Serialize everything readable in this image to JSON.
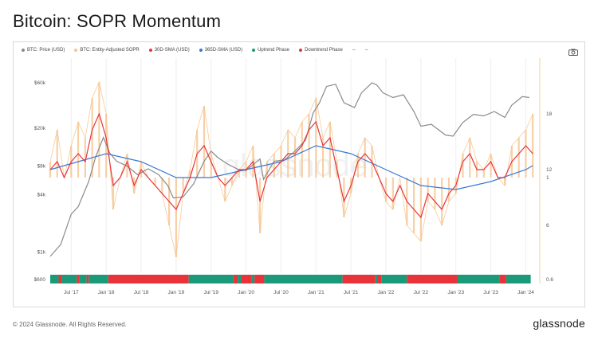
{
  "page": {
    "title": "Bitcoin: SOPR Momentum",
    "footer": "© 2024 Glassnode. All Rights Reserved.",
    "brand": "glassnode",
    "watermark": "glassnode"
  },
  "legend": [
    {
      "label": "BTC: Price (USD)",
      "color": "#8a8a8a"
    },
    {
      "label": "BTC: Entity-Adjusted SOPR",
      "color": "#f6c48f"
    },
    {
      "label": "30D-SMA (USD)",
      "color": "#e8333a"
    },
    {
      "label": "365D-SMA (USD)",
      "color": "#3a78d6"
    },
    {
      "label": "Uptrend Phase",
      "color": "#1a9a78"
    },
    {
      "label": "Downtrend Phase",
      "color": "#e8333a"
    },
    {
      "label": "--",
      "color": "#444444"
    },
    {
      "label": "--",
      "color": "#444444"
    }
  ],
  "toolbar": {
    "screenshot_icon": "camera-icon"
  },
  "chart_data": {
    "type": "line",
    "title": "Bitcoin: SOPR Momentum",
    "x_ticks": [
      "Jul '17",
      "Jan '18",
      "Jul '18",
      "Jan '19",
      "Jul '19",
      "Jan '20",
      "Jul '20",
      "Jan '21",
      "Jul '21",
      "Jan '22",
      "Jul '22",
      "Jan '23",
      "Jul '23",
      "Jan '24"
    ],
    "x_tick_dates": [
      2017.5,
      2018.0,
      2018.5,
      2019.0,
      2019.5,
      2020.0,
      2020.5,
      2021.0,
      2021.5,
      2022.0,
      2022.5,
      2023.0,
      2023.5,
      2024.0
    ],
    "xlim": [
      2017.2,
      2024.2
    ],
    "y_left": {
      "label": "",
      "scale": "log",
      "ticks": [
        "$600",
        "$1k",
        "$4k",
        "$8k",
        "$20k",
        "$60k"
      ],
      "tick_values": [
        600,
        1000,
        4000,
        8000,
        20000,
        60000
      ],
      "range": [
        600,
        90000
      ]
    },
    "y_right": {
      "label": "",
      "ticks": [
        "0.6",
        "1",
        "6",
        "12",
        "18"
      ],
      "tick_values": [
        0.6,
        1,
        6,
        12,
        18
      ]
    },
    "series": [
      {
        "name": "BTC: Price (USD)",
        "color": "#8a8a8a",
        "x": [
          2017.2,
          2017.35,
          2017.5,
          2017.6,
          2017.75,
          2017.85,
          2017.96,
          2018.05,
          2018.15,
          2018.3,
          2018.45,
          2018.6,
          2018.75,
          2018.88,
          2018.96,
          2019.1,
          2019.25,
          2019.4,
          2019.5,
          2019.6,
          2019.75,
          2019.9,
          2020.0,
          2020.2,
          2020.25,
          2020.4,
          2020.55,
          2020.7,
          2020.85,
          2020.96,
          2021.05,
          2021.15,
          2021.28,
          2021.4,
          2021.55,
          2021.65,
          2021.8,
          2021.87,
          2021.96,
          2022.1,
          2022.25,
          2022.4,
          2022.5,
          2022.65,
          2022.85,
          2022.96,
          2023.1,
          2023.25,
          2023.4,
          2023.55,
          2023.7,
          2023.8,
          2023.95,
          2024.05
        ],
        "y": [
          900,
          1200,
          2500,
          3000,
          5500,
          10000,
          16000,
          11000,
          9000,
          8000,
          6500,
          7500,
          6500,
          5000,
          3700,
          3800,
          5200,
          9000,
          11500,
          9800,
          8300,
          7300,
          7200,
          9500,
          5800,
          9000,
          9300,
          11500,
          15000,
          29000,
          37000,
          55000,
          58000,
          37000,
          33000,
          47000,
          60000,
          57000,
          47000,
          42000,
          45000,
          30000,
          21000,
          22000,
          17000,
          16500,
          23000,
          28000,
          27000,
          30000,
          26000,
          35000,
          43000,
          42000
        ]
      },
      {
        "name": "BTC: Entity-Adjusted SOPR",
        "color": "#f6c48f",
        "x": [
          2017.2,
          2017.3,
          2017.4,
          2017.5,
          2017.6,
          2017.7,
          2017.8,
          2017.9,
          2018.0,
          2018.1,
          2018.2,
          2018.3,
          2018.4,
          2018.5,
          2018.6,
          2018.7,
          2018.8,
          2018.9,
          2019.0,
          2019.1,
          2019.2,
          2019.3,
          2019.4,
          2019.5,
          2019.6,
          2019.7,
          2019.8,
          2019.9,
          2020.0,
          2020.1,
          2020.2,
          2020.3,
          2020.4,
          2020.5,
          2020.6,
          2020.7,
          2020.8,
          2020.9,
          2021.0,
          2021.1,
          2021.2,
          2021.3,
          2021.4,
          2021.5,
          2021.6,
          2021.7,
          2021.8,
          2021.9,
          2022.0,
          2022.1,
          2022.2,
          2022.3,
          2022.4,
          2022.5,
          2022.6,
          2022.7,
          2022.8,
          2022.9,
          2023.0,
          2023.1,
          2023.2,
          2023.3,
          2023.4,
          2023.5,
          2023.6,
          2023.7,
          2023.8,
          2023.9,
          2024.0,
          2024.1
        ],
        "y": [
          1.02,
          1.06,
          1.0,
          1.04,
          1.07,
          1.05,
          1.1,
          1.12,
          1.08,
          0.96,
          1.0,
          1.03,
          0.98,
          1.02,
          1.0,
          0.99,
          0.98,
          0.94,
          0.9,
          0.98,
          1.01,
          1.06,
          1.09,
          1.03,
          1.0,
          0.97,
          0.99,
          1.01,
          1.02,
          1.04,
          0.93,
          1.02,
          1.03,
          1.04,
          1.06,
          1.05,
          1.07,
          1.08,
          1.1,
          1.05,
          1.07,
          1.02,
          0.95,
          0.98,
          1.03,
          1.05,
          1.04,
          1.0,
          0.97,
          0.96,
          1.0,
          0.94,
          0.93,
          0.92,
          0.97,
          0.96,
          0.94,
          0.97,
          0.98,
          1.03,
          1.05,
          1.02,
          1.01,
          1.03,
          1.0,
          0.99,
          1.04,
          1.05,
          1.06,
          1.08
        ]
      },
      {
        "name": "30D-SMA (USD)",
        "color": "#e8333a",
        "x": [
          2017.2,
          2017.3,
          2017.4,
          2017.5,
          2017.6,
          2017.7,
          2017.8,
          2017.9,
          2018.0,
          2018.1,
          2018.2,
          2018.3,
          2018.4,
          2018.5,
          2018.6,
          2018.7,
          2018.8,
          2018.9,
          2019.0,
          2019.1,
          2019.2,
          2019.3,
          2019.4,
          2019.5,
          2019.6,
          2019.7,
          2019.8,
          2019.9,
          2020.0,
          2020.1,
          2020.2,
          2020.3,
          2020.4,
          2020.5,
          2020.6,
          2020.7,
          2020.8,
          2020.9,
          2021.0,
          2021.1,
          2021.2,
          2021.3,
          2021.4,
          2021.5,
          2021.6,
          2021.7,
          2021.8,
          2021.9,
          2022.0,
          2022.1,
          2022.2,
          2022.3,
          2022.4,
          2022.5,
          2022.6,
          2022.7,
          2022.8,
          2022.9,
          2023.0,
          2023.1,
          2023.2,
          2023.3,
          2023.4,
          2023.5,
          2023.6,
          2023.7,
          2023.8,
          2023.9,
          2024.0,
          2024.1
        ],
        "y": [
          1.01,
          1.02,
          1.0,
          1.02,
          1.03,
          1.02,
          1.06,
          1.08,
          1.05,
          0.99,
          1.0,
          1.02,
          0.99,
          1.01,
          1.0,
          0.99,
          0.98,
          0.97,
          0.96,
          0.98,
          1.0,
          1.03,
          1.04,
          1.02,
          1.0,
          0.99,
          1.0,
          1.01,
          1.01,
          1.02,
          0.97,
          1.0,
          1.01,
          1.02,
          1.03,
          1.03,
          1.04,
          1.06,
          1.07,
          1.04,
          1.05,
          1.01,
          0.97,
          0.99,
          1.02,
          1.03,
          1.02,
          1.0,
          0.98,
          0.97,
          0.99,
          0.97,
          0.96,
          0.95,
          0.98,
          0.97,
          0.96,
          0.98,
          0.99,
          1.02,
          1.03,
          1.01,
          1.01,
          1.02,
          1.0,
          1.0,
          1.02,
          1.03,
          1.04,
          1.03
        ]
      },
      {
        "name": "365D-SMA (USD)",
        "color": "#3a78d6",
        "x": [
          2017.2,
          2017.6,
          2018.0,
          2018.5,
          2019.0,
          2019.5,
          2020.0,
          2020.5,
          2021.0,
          2021.5,
          2022.0,
          2022.5,
          2023.0,
          2023.5,
          2024.0,
          2024.1
        ],
        "y": [
          1.01,
          1.02,
          1.03,
          1.02,
          1.0,
          1.0,
          1.01,
          1.02,
          1.04,
          1.03,
          1.01,
          0.99,
          0.985,
          0.995,
          1.01,
          1.015
        ]
      }
    ],
    "phases": [
      {
        "start": 2017.2,
        "end": 2017.32,
        "phase": "Uptrend Phase"
      },
      {
        "start": 2017.32,
        "end": 2017.36,
        "phase": "Downtrend Phase"
      },
      {
        "start": 2017.36,
        "end": 2017.58,
        "phase": "Uptrend Phase"
      },
      {
        "start": 2017.58,
        "end": 2017.62,
        "phase": "Downtrend Phase"
      },
      {
        "start": 2017.62,
        "end": 2017.72,
        "phase": "Uptrend Phase"
      },
      {
        "start": 2017.72,
        "end": 2017.75,
        "phase": "Downtrend Phase"
      },
      {
        "start": 2017.75,
        "end": 2018.03,
        "phase": "Uptrend Phase"
      },
      {
        "start": 2018.03,
        "end": 2019.18,
        "phase": "Downtrend Phase"
      },
      {
        "start": 2019.18,
        "end": 2019.82,
        "phase": "Uptrend Phase"
      },
      {
        "start": 2019.82,
        "end": 2019.88,
        "phase": "Downtrend Phase"
      },
      {
        "start": 2019.88,
        "end": 2019.93,
        "phase": "Uptrend Phase"
      },
      {
        "start": 2019.93,
        "end": 2020.08,
        "phase": "Downtrend Phase"
      },
      {
        "start": 2020.08,
        "end": 2020.12,
        "phase": "Uptrend Phase"
      },
      {
        "start": 2020.12,
        "end": 2020.26,
        "phase": "Downtrend Phase"
      },
      {
        "start": 2020.26,
        "end": 2021.38,
        "phase": "Uptrend Phase"
      },
      {
        "start": 2021.38,
        "end": 2021.85,
        "phase": "Downtrend Phase"
      },
      {
        "start": 2021.85,
        "end": 2021.88,
        "phase": "Uptrend Phase"
      },
      {
        "start": 2021.88,
        "end": 2021.94,
        "phase": "Downtrend Phase"
      },
      {
        "start": 2021.94,
        "end": 2022.3,
        "phase": "Uptrend Phase"
      },
      {
        "start": 2022.3,
        "end": 2023.02,
        "phase": "Downtrend Phase"
      },
      {
        "start": 2023.02,
        "end": 2023.62,
        "phase": "Uptrend Phase"
      },
      {
        "start": 2023.62,
        "end": 2023.72,
        "phase": "Downtrend Phase"
      },
      {
        "start": 2023.72,
        "end": 2024.07,
        "phase": "Uptrend Phase"
      }
    ],
    "grid": "vertical"
  }
}
